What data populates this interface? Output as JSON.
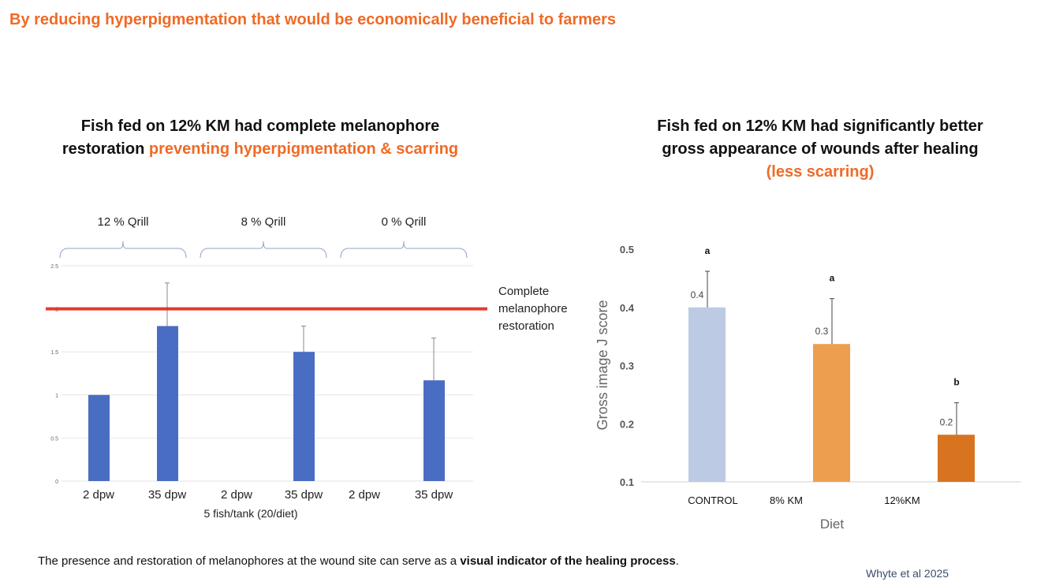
{
  "headline": "By reducing hyperpigmentation that would be economically beneficial to farmers",
  "left_panel": {
    "title_line1": "Fish fed on 12% KM had complete melanophore",
    "title_line2_plain": "restoration ",
    "title_line2_highlight": "preventing hyperpigmentation & scarring"
  },
  "right_panel": {
    "title_line1": "Fish fed on 12% KM had significantly better",
    "title_line2": "gross appearance of wounds after healing",
    "title_line3_highlight": "(less scarring)"
  },
  "footer": {
    "text_plain": "The presence and restoration of melanophores at the wound site can serve as a ",
    "text_bold": "visual indicator of the healing process",
    "text_end": "."
  },
  "citation": "Whyte et al 2025",
  "chart_data": [
    {
      "type": "bar",
      "groups": [
        "12 % Qrill",
        "8 % Qrill",
        "0 % Qrill"
      ],
      "categories": [
        "2 dpw",
        "35 dpw",
        "2 dpw",
        "35 dpw",
        "2 dpw",
        "35 dpw"
      ],
      "values": [
        1.0,
        1.8,
        0,
        1.5,
        0,
        1.17
      ],
      "error_upper": [
        null,
        2.3,
        null,
        1.8,
        null,
        1.66
      ],
      "xlabel": "5 fish/tank (20/diet)",
      "ylabel": "",
      "ylim": [
        0,
        2.5
      ],
      "yticks": [
        "0",
        "0.5",
        "1",
        "1.5",
        "2",
        "2.5"
      ],
      "grid": true,
      "reference_line": {
        "value": 2,
        "label": "Complete melanophore restoration",
        "color": "#e0261b"
      },
      "bar_color": "#4a6dc4"
    },
    {
      "type": "bar",
      "categories": [
        "CONTROL",
        "8% KM",
        "12%KM"
      ],
      "values": [
        0.4,
        0.337,
        0.181
      ],
      "error_upper": [
        0.462,
        0.415,
        0.236
      ],
      "data_labels": [
        "0.4",
        "0.3",
        "0.2"
      ],
      "significance_letters": [
        "a",
        "a",
        "b"
      ],
      "colors": [
        "#bccbe3",
        "#ee9e4f",
        "#d8731f"
      ],
      "xlabel": "Diet",
      "ylabel": "Gross image J score",
      "ylim": [
        0.1,
        0.5
      ],
      "yticks": [
        "0.1",
        "0.2",
        "0.3",
        "0.4",
        "0.5"
      ],
      "grid": false
    }
  ]
}
